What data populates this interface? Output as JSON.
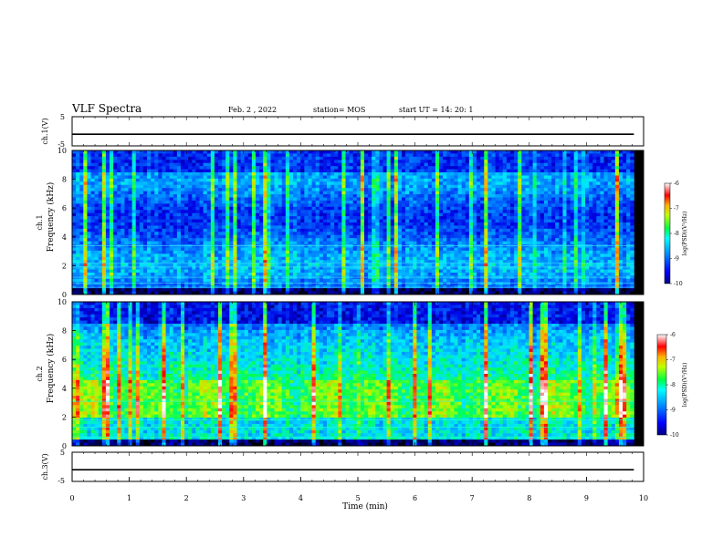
{
  "header": {
    "title": "VLF Spectra",
    "date": "Feb. 2 , 2022",
    "station": "station= MOS",
    "start": "start  UT =   14: 20: 1"
  },
  "colors": {
    "axis": "#000000",
    "background": "#000000",
    "colormap": [
      "#000080",
      "#0000ff",
      "#0080ff",
      "#00ffff",
      "#00ff00",
      "#ffff00",
      "#ff8000",
      "#ff0000",
      "#ffffff"
    ]
  },
  "chart_data": [
    {
      "type": "line",
      "panel": "ch1-waveform",
      "ylabel": "ch.1(V)",
      "ylim": [
        -5,
        5
      ],
      "yticks": [
        "5",
        "-5"
      ],
      "x": [
        0,
        9.83
      ],
      "values": [
        -1,
        -1
      ],
      "xlim": [
        0,
        10
      ]
    },
    {
      "type": "heatmap",
      "panel": "ch1-spectrogram",
      "ylabel": "ch.1\nFrequency (kHz)",
      "ylim": [
        0,
        10
      ],
      "yticks": [
        "0",
        "2",
        "4",
        "6",
        "8",
        "10"
      ],
      "xlim": [
        0,
        10
      ],
      "data_extent_x": [
        0,
        9.83
      ],
      "band_emphasis_khz": [
        2,
        9.5
      ],
      "colorbar": {
        "label": "log(PSD)(V²/Hz)",
        "range": [
          -10,
          -6
        ],
        "ticks": [
          "-6",
          "-7",
          "-8",
          "-9",
          "-10"
        ]
      }
    },
    {
      "type": "heatmap",
      "panel": "ch2-spectrogram",
      "ylabel": "ch.2\nFrequency (kHz)",
      "ylim": [
        0,
        10
      ],
      "yticks": [
        "0",
        "2",
        "4",
        "6",
        "8",
        "10"
      ],
      "xlim": [
        0,
        10
      ],
      "data_extent_x": [
        0,
        9.83
      ],
      "band_emphasis_khz": [
        5.5,
        8
      ],
      "colorbar": {
        "label": "log(PSD)(V²/Hz)",
        "range": [
          -10,
          -6
        ],
        "ticks": [
          "-6",
          "-7",
          "-8",
          "-9",
          "-10"
        ]
      }
    },
    {
      "type": "line",
      "panel": "ch3-waveform",
      "ylabel": "ch.3(V)",
      "ylim": [
        -5,
        5
      ],
      "yticks": [
        "5",
        "-5"
      ],
      "x": [
        0,
        9.83
      ],
      "values": [
        -1,
        -1
      ],
      "xlim": [
        0,
        10
      ]
    }
  ],
  "xaxis": {
    "label": "Time (min)",
    "ticks": [
      "0",
      "1",
      "2",
      "3",
      "4",
      "5",
      "6",
      "7",
      "8",
      "9",
      "10"
    ]
  }
}
